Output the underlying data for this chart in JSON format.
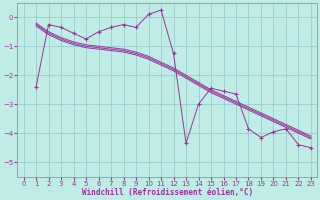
{
  "xlabel": "Windchill (Refroidissement éolien,°C)",
  "background_color": "#c0ece6",
  "line_color": "#993399",
  "grid_color": "#99cccc",
  "xlim": [
    -0.5,
    23.5
  ],
  "ylim": [
    -5.5,
    0.5
  ],
  "yticks": [
    0,
    -1,
    -2,
    -3,
    -4,
    -5
  ],
  "xticks": [
    0,
    1,
    2,
    3,
    4,
    5,
    6,
    7,
    8,
    9,
    10,
    11,
    12,
    13,
    14,
    15,
    16,
    17,
    18,
    19,
    20,
    21,
    22,
    23
  ],
  "main_series": [
    null,
    -2.4,
    -0.25,
    -0.35,
    -0.55,
    -0.75,
    -0.5,
    -0.35,
    -0.25,
    -0.35,
    0.1,
    0.25,
    -1.25,
    -4.35,
    -3.0,
    -2.45,
    -2.55,
    -2.65,
    -3.85,
    -4.15,
    -3.95,
    -3.85,
    -4.4,
    -4.5
  ],
  "trend_lines": [
    [
      null,
      -0.25,
      -0.55,
      -0.75,
      -0.9,
      -1.0,
      -1.05,
      -1.1,
      -1.15,
      -1.25,
      -1.4,
      -1.6,
      -1.8,
      -2.05,
      -2.3,
      -2.55,
      -2.75,
      -2.95,
      -3.15,
      -3.35,
      -3.55,
      -3.75,
      -3.95,
      -4.15
    ],
    [
      null,
      -0.3,
      -0.6,
      -0.8,
      -0.95,
      -1.05,
      -1.1,
      -1.15,
      -1.2,
      -1.3,
      -1.45,
      -1.65,
      -1.85,
      -2.1,
      -2.35,
      -2.6,
      -2.8,
      -3.0,
      -3.2,
      -3.4,
      -3.6,
      -3.8,
      -4.0,
      -4.2
    ],
    [
      null,
      -0.2,
      -0.5,
      -0.7,
      -0.85,
      -0.95,
      -1.0,
      -1.05,
      -1.1,
      -1.2,
      -1.35,
      -1.55,
      -1.75,
      -2.0,
      -2.25,
      -2.5,
      -2.7,
      -2.9,
      -3.1,
      -3.3,
      -3.5,
      -3.7,
      -3.9,
      -4.1
    ]
  ]
}
